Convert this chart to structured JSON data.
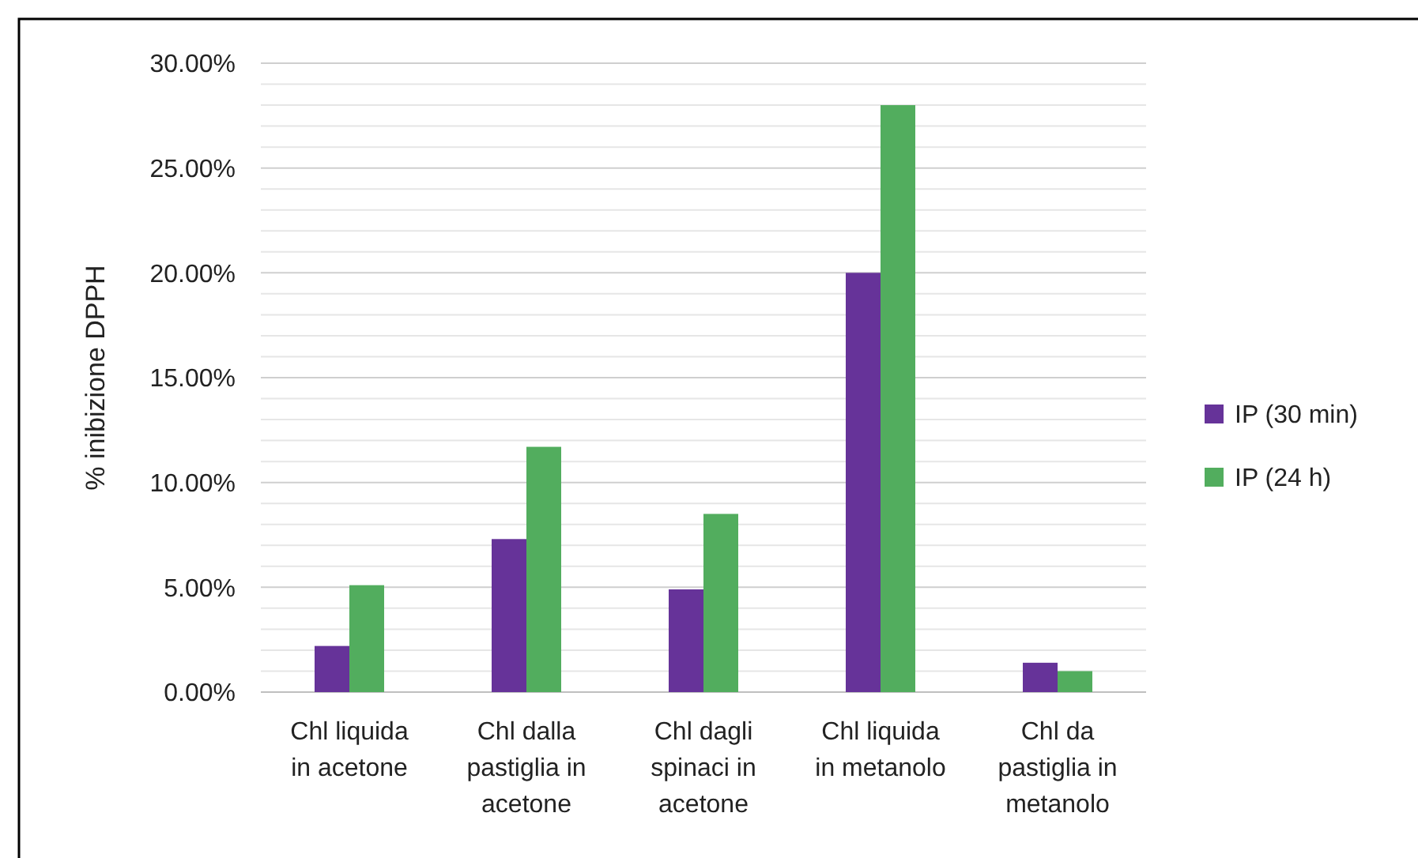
{
  "chart_data": {
    "type": "bar",
    "ylabel": "% inibizione DPPH",
    "categories": [
      "Chl liquida in acetone",
      "Chl dalla pastiglia in acetone",
      "Chl dagli spinaci in acetone",
      "Chl liquida in metanolo",
      "Chl da pastiglia in metanolo"
    ],
    "series": [
      {
        "name": "IP (30 min)",
        "color": "#663399",
        "values": [
          2.2,
          7.3,
          4.9,
          20.0,
          1.4
        ]
      },
      {
        "name": "IP (24 h)",
        "color": "#52ad5e",
        "values": [
          5.1,
          11.7,
          8.5,
          28.0,
          1.0
        ]
      }
    ],
    "ylim": [
      0,
      30
    ],
    "yticks": [
      {
        "value": 0,
        "label": "0.00%"
      },
      {
        "value": 1,
        "label": null
      },
      {
        "value": 2,
        "label": null
      },
      {
        "value": 3,
        "label": null
      },
      {
        "value": 4,
        "label": null
      },
      {
        "value": 5,
        "label": "5.00%"
      },
      {
        "value": 6,
        "label": null
      },
      {
        "value": 7,
        "label": null
      },
      {
        "value": 8,
        "label": null
      },
      {
        "value": 9,
        "label": null
      },
      {
        "value": 10,
        "label": "10.00%"
      },
      {
        "value": 11,
        "label": null
      },
      {
        "value": 12,
        "label": null
      },
      {
        "value": 13,
        "label": null
      },
      {
        "value": 14,
        "label": null
      },
      {
        "value": 15,
        "label": "15.00%"
      },
      {
        "value": 16,
        "label": null
      },
      {
        "value": 17,
        "label": null
      },
      {
        "value": 18,
        "label": null
      },
      {
        "value": 19,
        "label": null
      },
      {
        "value": 20,
        "label": "20.00%"
      },
      {
        "value": 21,
        "label": null
      },
      {
        "value": 22,
        "label": null
      },
      {
        "value": 23,
        "label": null
      },
      {
        "value": 24,
        "label": null
      },
      {
        "value": 25,
        "label": "25.00%"
      },
      {
        "value": 26,
        "label": null
      },
      {
        "value": 27,
        "label": null
      },
      {
        "value": 28,
        "label": null
      },
      {
        "value": 29,
        "label": null
      },
      {
        "value": 30,
        "label": "30.00%"
      }
    ],
    "grid": true,
    "legend": "right"
  }
}
